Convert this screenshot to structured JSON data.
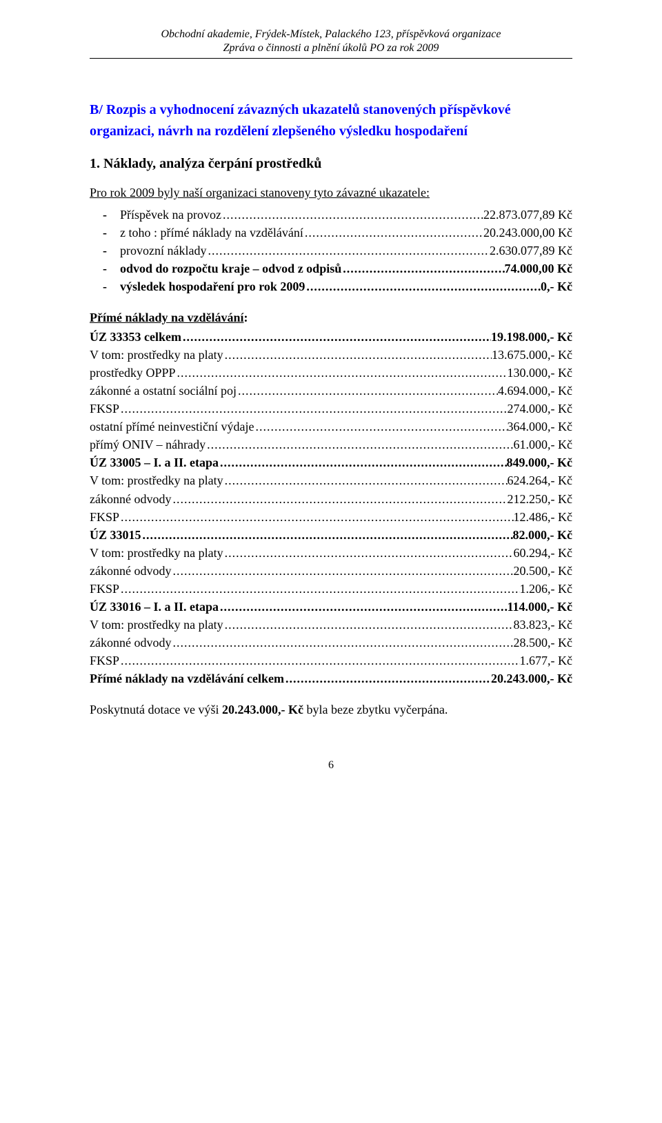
{
  "header": {
    "line1": "Obchodní akademie, Frýdek-Místek, Palackého 123, příspěvková organizace",
    "line2": "Zpráva o činnosti a plnění úkolů PO za rok 2009"
  },
  "title": {
    "line1": "B/ Rozpis a vyhodnocení závazných ukazatelů stanovených příspěvkové",
    "line2": "organizaci,  návrh na rozdělení zlepšeného výsledku hospodaření"
  },
  "subhead": "1. Náklady, analýza čerpání prostředků",
  "lead": "Pro rok 2009 byly naší organizaci stanoveny tyto závazné ukazatele:",
  "bullets": [
    {
      "label": "Příspěvek na provoz ",
      "value": " 22.873.077,89 Kč",
      "bold": false
    },
    {
      "label": "z toho : přímé náklady na vzdělávání ",
      "value": "20.243.000,00 Kč",
      "bold": false
    },
    {
      "label": "            provozní náklady ",
      "value": "2.630.077,89 Kč",
      "bold": false
    },
    {
      "label": "odvod do rozpočtu kraje – odvod z odpisů ",
      "value": " 74.000,00 Kč",
      "bold": true
    },
    {
      "label": "výsledek hospodaření pro rok 2009 ",
      "value": " 0,- Kč",
      "bold": true
    }
  ],
  "section1": {
    "head_u": "Přímé náklady na vzdělávání",
    "head_tail": ":",
    "items": [
      {
        "label": "ÚZ 33353 celkem",
        "value": " 19.198.000,- Kč",
        "bold": true
      },
      {
        "label": "V tom: prostředky na platy",
        "value": " 13.675.000,- Kč",
        "bold": false
      },
      {
        "label": "prostředky OPPP",
        "value": " 130.000,- Kč",
        "bold": false
      },
      {
        "label": "zákonné a ostatní sociální poj ",
        "value": " 4.694.000,- Kč",
        "bold": false
      },
      {
        "label": "FKSP",
        "value": " 274.000,- Kč",
        "bold": false
      },
      {
        "label": "ostatní přímé neinvestiční výdaje",
        "value": " 364.000,- Kč",
        "bold": false
      },
      {
        "label": "přímý ONIV – náhrady ",
        "value": " 61.000,- Kč",
        "bold": false
      },
      {
        "label": "ÚZ 33005 – I. a II. etapa ",
        "value": " 849.000,- Kč",
        "bold": true
      },
      {
        "label": "V tom: prostředky na platy ",
        "value": " 624.264,- Kč",
        "bold": false
      },
      {
        "label": "zákonné odvody",
        "value": " 212.250,- Kč",
        "bold": false
      },
      {
        "label": "FKSP",
        "value": " 12.486,- Kč",
        "bold": false
      },
      {
        "label": "ÚZ 33015",
        "value": "82.000,- Kč",
        "bold": true
      },
      {
        "label": "V tom: prostředky na platy",
        "value": " 60.294,- Kč",
        "bold": false
      },
      {
        "label": "zákonné odvody",
        "value": " 20.500,- Kč",
        "bold": false
      },
      {
        "label": "FKSP",
        "value": " 1.206,- Kč",
        "bold": false
      },
      {
        "label": "ÚZ 33016 – I. a II. etapa ",
        "value": " 114.000,- Kč",
        "bold": true
      },
      {
        "label": "V tom: prostředky na platy",
        "value": " 83.823,- Kč",
        "bold": false
      },
      {
        "label": "zákonné odvody",
        "value": " 28.500,- Kč",
        "bold": false
      },
      {
        "label": "FKSP",
        "value": " 1.677,- Kč",
        "bold": false
      },
      {
        "label": "Přímé náklady na vzdělávání celkem ",
        "value": "20.243.000,- Kč",
        "bold": true
      }
    ]
  },
  "para": {
    "pre": "Poskytnutá dotace ve výši ",
    "bold": "20.243.000,- Kč",
    "post": " byla beze zbytku vyčerpána."
  },
  "pagenum": "6",
  "dots": "............................................................................................................................................................................................"
}
